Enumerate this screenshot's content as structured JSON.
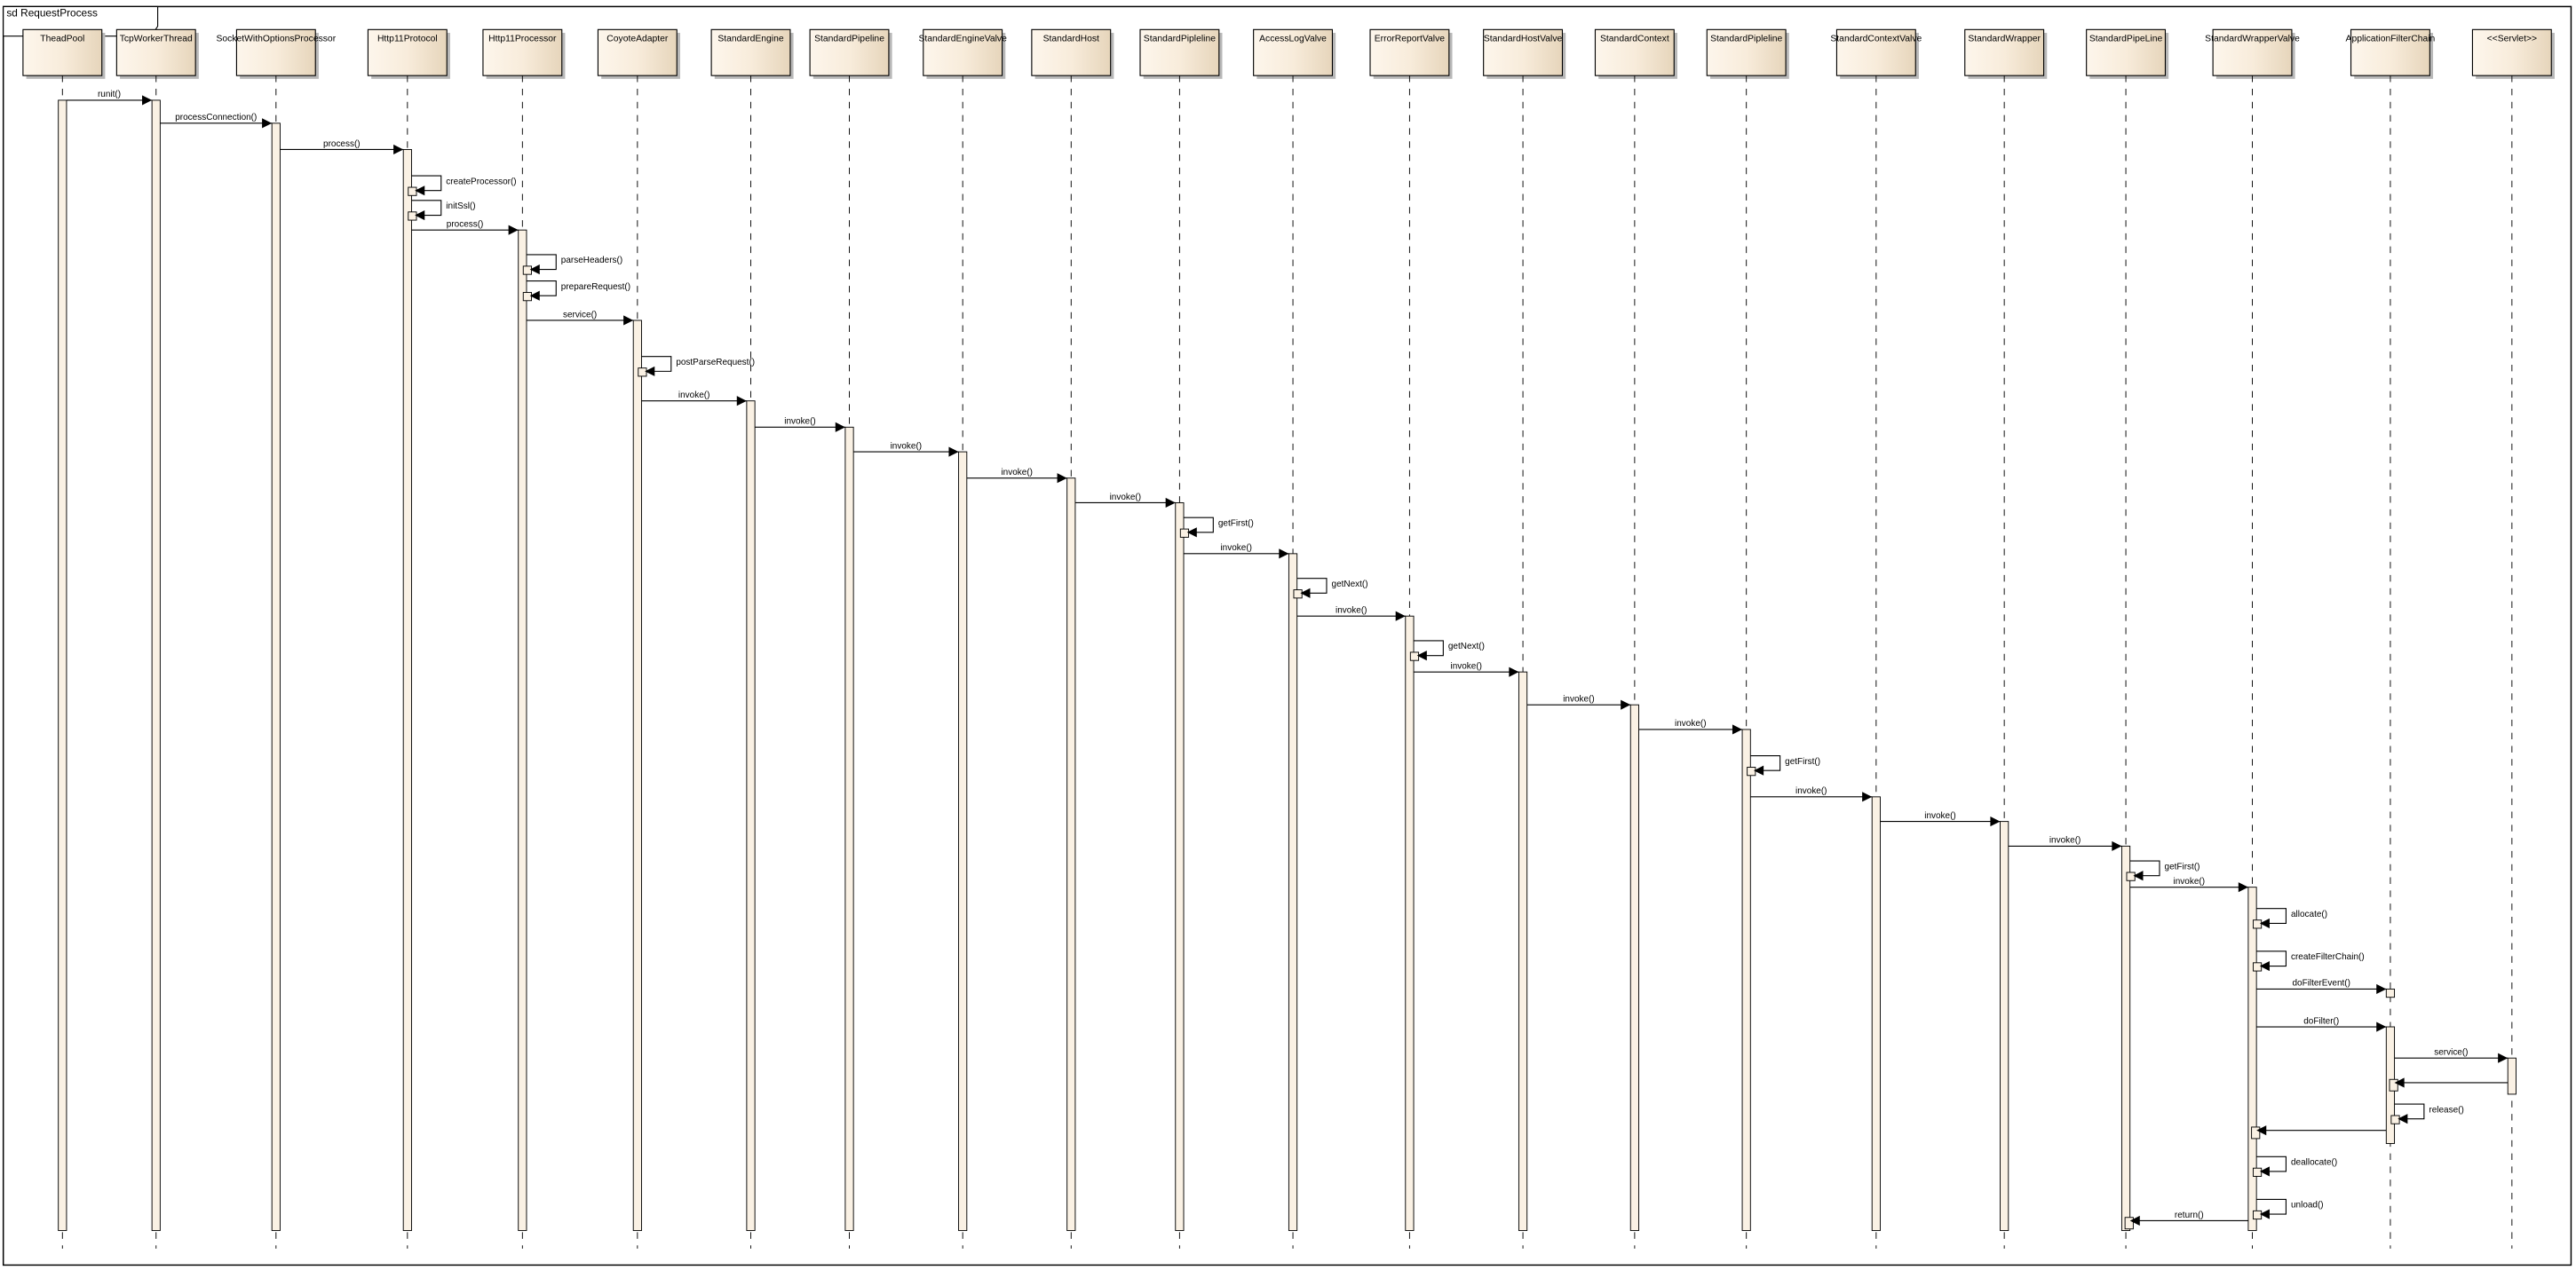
{
  "frame": {
    "title": "sd RequestProcess"
  },
  "colors": {
    "box_light": "#fdf6ec",
    "box_dark": "#e6d5bb",
    "activation": "#faf1e4",
    "line": "#000000",
    "shadow": "#b8b8b8"
  },
  "participants": [
    "TheadPool",
    "TcpWorkerThread",
    "SocketWithOptionsProcessor",
    "Http11Protocol",
    "Http11Processor",
    "CoyoteAdapter",
    "StandardEngine",
    "StandardPipeline",
    "StandardEngineValve",
    "StandardHost",
    "StandardPipleline",
    "AccessLogValve",
    "ErrorReportValve",
    "StandardHostValve",
    "StandardContext",
    "StandardPipleline",
    "StandardContextValve",
    "StandardWrapper",
    "StandardPipeLine",
    "StandardWrapperValve",
    "ApplicationFilterChain",
    "<<Servlet>>"
  ],
  "messages": [
    {
      "from": 0,
      "to": 1,
      "label": "runit()",
      "kind": "call"
    },
    {
      "from": 1,
      "to": 2,
      "label": "processConnection()",
      "kind": "call"
    },
    {
      "from": 2,
      "to": 3,
      "label": "process()",
      "kind": "call"
    },
    {
      "from": 3,
      "to": 3,
      "label": "createProcessor()",
      "kind": "self"
    },
    {
      "from": 3,
      "to": 3,
      "label": "initSsl()",
      "kind": "self"
    },
    {
      "from": 3,
      "to": 4,
      "label": "process()",
      "kind": "call"
    },
    {
      "from": 4,
      "to": 4,
      "label": "parseHeaders()",
      "kind": "self"
    },
    {
      "from": 4,
      "to": 4,
      "label": "prepareRequest()",
      "kind": "self"
    },
    {
      "from": 4,
      "to": 5,
      "label": "service()",
      "kind": "call"
    },
    {
      "from": 5,
      "to": 5,
      "label": "postParseRequest()",
      "kind": "self"
    },
    {
      "from": 5,
      "to": 6,
      "label": "invoke()",
      "kind": "call"
    },
    {
      "from": 6,
      "to": 7,
      "label": "invoke()",
      "kind": "call"
    },
    {
      "from": 7,
      "to": 8,
      "label": "invoke()",
      "kind": "call"
    },
    {
      "from": 8,
      "to": 9,
      "label": "invoke()",
      "kind": "call"
    },
    {
      "from": 9,
      "to": 10,
      "label": "invoke()",
      "kind": "call"
    },
    {
      "from": 10,
      "to": 10,
      "label": "getFirst()",
      "kind": "self"
    },
    {
      "from": 10,
      "to": 11,
      "label": "invoke()",
      "kind": "call"
    },
    {
      "from": 11,
      "to": 11,
      "label": "getNext()",
      "kind": "self"
    },
    {
      "from": 11,
      "to": 12,
      "label": "invoke()",
      "kind": "call"
    },
    {
      "from": 12,
      "to": 12,
      "label": "getNext()",
      "kind": "self"
    },
    {
      "from": 12,
      "to": 13,
      "label": "invoke()",
      "kind": "call"
    },
    {
      "from": 13,
      "to": 14,
      "label": "invoke()",
      "kind": "call"
    },
    {
      "from": 14,
      "to": 15,
      "label": "invoke()",
      "kind": "call"
    },
    {
      "from": 15,
      "to": 15,
      "label": "getFirst()",
      "kind": "self"
    },
    {
      "from": 15,
      "to": 16,
      "label": "invoke()",
      "kind": "call"
    },
    {
      "from": 16,
      "to": 17,
      "label": "invoke()",
      "kind": "call"
    },
    {
      "from": 17,
      "to": 18,
      "label": "invoke()",
      "kind": "call"
    },
    {
      "from": 18,
      "to": 18,
      "label": "getFirst()",
      "kind": "self"
    },
    {
      "from": 18,
      "to": 19,
      "label": "invoke()",
      "kind": "call"
    },
    {
      "from": 19,
      "to": 19,
      "label": "allocate()",
      "kind": "self"
    },
    {
      "from": 19,
      "to": 19,
      "label": "createFilterChain()",
      "kind": "self"
    },
    {
      "from": 19,
      "to": 20,
      "label": "doFilterEvent()",
      "kind": "call"
    },
    {
      "from": 19,
      "to": 20,
      "label": "doFilter()",
      "kind": "call"
    },
    {
      "from": 20,
      "to": 21,
      "label": "service()",
      "kind": "call"
    },
    {
      "from": 21,
      "to": 20,
      "label": "",
      "kind": "return"
    },
    {
      "from": 20,
      "to": 20,
      "label": "release()",
      "kind": "self"
    },
    {
      "from": 20,
      "to": 19,
      "label": "",
      "kind": "return"
    },
    {
      "from": 19,
      "to": 19,
      "label": "deallocate()",
      "kind": "self"
    },
    {
      "from": 19,
      "to": 19,
      "label": "unload()",
      "kind": "self"
    },
    {
      "from": 19,
      "to": 18,
      "label": "return()",
      "kind": "return"
    }
  ]
}
